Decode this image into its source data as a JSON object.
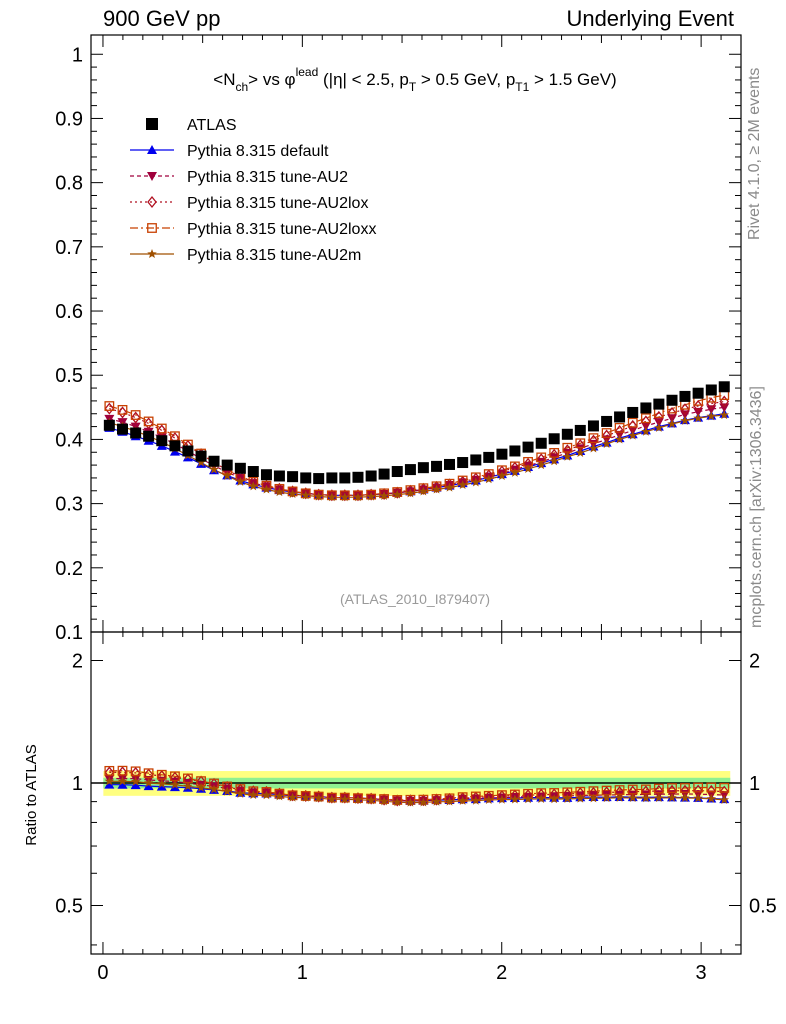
{
  "header": {
    "left": "900 GeV pp",
    "right": "Underlying Event"
  },
  "side_texts": {
    "rivet": "Rivet 4.1.0, ≥ 2M events",
    "mcplots": "mcplots.cern.ch [arXiv:1306.3436]"
  },
  "watermark": "(ATLAS_2010_I879407)",
  "chart_data": [
    {
      "type": "scatter",
      "title": "<N_ch> vs φ^lead (|η| < 2.5, p_T > 0.5 GeV, p_T1 > 1.5 GeV)",
      "title_parts": {
        "a": "<N",
        "a_sub": "ch",
        "b": "> vs φ",
        "b_sup": "lead",
        "c": " (|η| < 2.5, p",
        "c_sub": "T",
        "d": " > 0.5 GeV, p",
        "d_sub": "T1",
        "e": " > 1.5 GeV)"
      },
      "xlim": [
        -0.06,
        3.2
      ],
      "ylim": [
        0.1,
        1.03
      ],
      "yticks": [
        "0.1",
        "0.2",
        "0.3",
        "0.4",
        "0.5",
        "0.6",
        "0.7",
        "0.8",
        "0.9",
        "1"
      ],
      "legend_position": "top-left",
      "x": [
        0.032,
        0.098,
        0.164,
        0.229,
        0.295,
        0.361,
        0.426,
        0.492,
        0.557,
        0.623,
        0.689,
        0.754,
        0.82,
        0.885,
        0.951,
        1.017,
        1.082,
        1.148,
        1.213,
        1.279,
        1.345,
        1.41,
        1.476,
        1.542,
        1.607,
        1.673,
        1.738,
        1.804,
        1.87,
        1.935,
        2.001,
        2.066,
        2.132,
        2.198,
        2.263,
        2.329,
        2.394,
        2.46,
        2.526,
        2.591,
        2.657,
        2.723,
        2.788,
        2.854,
        2.919,
        2.985,
        3.051,
        3.116
      ],
      "series": [
        {
          "name": "ATLAS",
          "marker": "square",
          "color": "#000000",
          "values": [
            0.422,
            0.416,
            0.41,
            0.405,
            0.398,
            0.39,
            0.382,
            0.374,
            0.366,
            0.36,
            0.355,
            0.35,
            0.345,
            0.343,
            0.342,
            0.34,
            0.339,
            0.34,
            0.34,
            0.341,
            0.343,
            0.346,
            0.35,
            0.353,
            0.356,
            0.358,
            0.361,
            0.364,
            0.368,
            0.372,
            0.377,
            0.382,
            0.388,
            0.394,
            0.401,
            0.408,
            0.414,
            0.421,
            0.428,
            0.435,
            0.442,
            0.449,
            0.455,
            0.461,
            0.467,
            0.472,
            0.477,
            0.482
          ]
        },
        {
          "name": "Pythia 8.315 default",
          "marker": "triangle-up",
          "color": "#0000ee",
          "dash": "",
          "values": [
            0.418,
            0.412,
            0.405,
            0.398,
            0.39,
            0.381,
            0.372,
            0.362,
            0.352,
            0.344,
            0.336,
            0.33,
            0.325,
            0.321,
            0.318,
            0.316,
            0.314,
            0.313,
            0.313,
            0.313,
            0.314,
            0.315,
            0.317,
            0.319,
            0.322,
            0.325,
            0.328,
            0.332,
            0.336,
            0.341,
            0.346,
            0.351,
            0.357,
            0.363,
            0.369,
            0.375,
            0.382,
            0.389,
            0.395,
            0.402,
            0.408,
            0.414,
            0.42,
            0.425,
            0.43,
            0.434,
            0.437,
            0.44
          ]
        },
        {
          "name": "Pythia 8.315 tune-AU2",
          "marker": "triangle-down",
          "color": "#a0003c",
          "dash": "4,3",
          "values": [
            0.432,
            0.427,
            0.42,
            0.412,
            0.403,
            0.393,
            0.382,
            0.37,
            0.359,
            0.349,
            0.34,
            0.332,
            0.327,
            0.322,
            0.319,
            0.316,
            0.314,
            0.313,
            0.313,
            0.313,
            0.314,
            0.315,
            0.317,
            0.319,
            0.322,
            0.325,
            0.329,
            0.333,
            0.337,
            0.342,
            0.347,
            0.353,
            0.359,
            0.365,
            0.372,
            0.379,
            0.386,
            0.393,
            0.4,
            0.407,
            0.414,
            0.421,
            0.427,
            0.433,
            0.439,
            0.443,
            0.447,
            0.45
          ]
        },
        {
          "name": "Pythia 8.315 tune-AU2lox",
          "marker": "diamond-open",
          "color": "#b01020",
          "dash": "2,3",
          "values": [
            0.448,
            0.442,
            0.434,
            0.425,
            0.414,
            0.402,
            0.39,
            0.377,
            0.364,
            0.352,
            0.342,
            0.334,
            0.328,
            0.323,
            0.319,
            0.316,
            0.314,
            0.313,
            0.313,
            0.313,
            0.314,
            0.315,
            0.317,
            0.32,
            0.323,
            0.326,
            0.33,
            0.334,
            0.339,
            0.344,
            0.35,
            0.356,
            0.362,
            0.369,
            0.376,
            0.383,
            0.391,
            0.398,
            0.406,
            0.413,
            0.421,
            0.428,
            0.435,
            0.441,
            0.447,
            0.452,
            0.456,
            0.459
          ]
        },
        {
          "name": "Pythia 8.315 tune-AU2loxx",
          "marker": "square-open",
          "color": "#c84000",
          "dash": "8,3,2,3",
          "values": [
            0.452,
            0.446,
            0.438,
            0.428,
            0.417,
            0.405,
            0.392,
            0.378,
            0.365,
            0.353,
            0.343,
            0.334,
            0.328,
            0.323,
            0.319,
            0.316,
            0.314,
            0.313,
            0.313,
            0.313,
            0.314,
            0.316,
            0.318,
            0.321,
            0.324,
            0.327,
            0.331,
            0.336,
            0.341,
            0.346,
            0.352,
            0.358,
            0.365,
            0.372,
            0.379,
            0.387,
            0.394,
            0.402,
            0.41,
            0.418,
            0.426,
            0.433,
            0.441,
            0.448,
            0.454,
            0.46,
            0.465,
            0.469
          ]
        },
        {
          "name": "Pythia 8.315 tune-AU2m",
          "marker": "star",
          "color": "#a05000",
          "dash": "",
          "values": [
            0.426,
            0.42,
            0.413,
            0.405,
            0.396,
            0.386,
            0.375,
            0.364,
            0.353,
            0.343,
            0.334,
            0.327,
            0.322,
            0.318,
            0.315,
            0.313,
            0.311,
            0.31,
            0.31,
            0.31,
            0.311,
            0.312,
            0.314,
            0.316,
            0.319,
            0.322,
            0.325,
            0.329,
            0.333,
            0.338,
            0.343,
            0.348,
            0.354,
            0.36,
            0.366,
            0.373,
            0.379,
            0.386,
            0.393,
            0.4,
            0.406,
            0.412,
            0.418,
            0.424,
            0.429,
            0.433,
            0.436,
            0.438
          ]
        }
      ]
    },
    {
      "type": "scatter",
      "title": "",
      "ylabel": "Ratio to ATLAS",
      "xlim": [
        -0.06,
        3.2
      ],
      "ylim": [
        0.38,
        2.35
      ],
      "xticks": [
        "0",
        "1",
        "2",
        "3"
      ],
      "yticks": [
        "0.5",
        "1",
        "2"
      ],
      "band_inner": [
        0.97,
        1.03
      ],
      "band_outer": [
        0.93,
        1.07
      ]
    }
  ]
}
